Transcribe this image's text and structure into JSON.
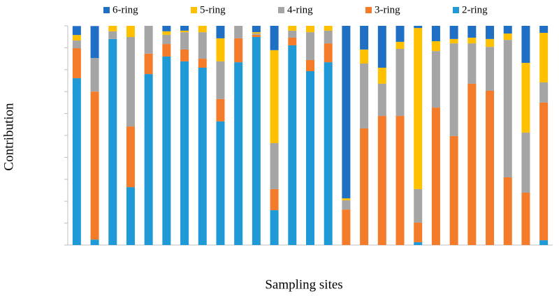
{
  "chart_data": {
    "type": "stacked-bar",
    "x_label": "Sampling sites",
    "y_label": "Contribution",
    "categories": [
      null,
      null,
      null,
      null,
      null,
      null,
      null,
      null,
      null,
      null,
      null,
      null,
      null,
      null,
      null,
      null,
      null,
      null,
      null,
      null,
      null,
      null,
      null,
      null,
      null,
      null,
      null
    ],
    "ylim": [
      0,
      100
    ],
    "yticks": [
      0,
      10,
      20,
      30,
      40,
      50,
      60,
      70,
      80,
      90,
      100
    ],
    "grid": false,
    "legend": "top",
    "series": [
      {
        "name": "6-ring",
        "color": "#1f6fc5",
        "values": [
          4.1,
          14.6,
          0,
          0,
          0,
          2.5,
          2.2,
          0,
          5.7,
          0,
          2.9,
          11.1,
          0,
          0,
          0,
          78.7,
          10.8,
          19.1,
          7.3,
          1.0,
          7.0,
          6.0,
          5.4,
          6.0,
          3.5,
          16.9,
          3.2
        ]
      },
      {
        "name": "5-ring",
        "color": "#ffc000",
        "values": [
          2.5,
          0,
          2.5,
          5.1,
          0,
          1.6,
          0.7,
          2.9,
          10.5,
          0,
          0.6,
          42.4,
          2.2,
          2.9,
          2.2,
          0.9,
          6.4,
          7.3,
          3.2,
          73.5,
          4.5,
          2.0,
          2.6,
          3.6,
          2.9,
          31.8,
          22.6
        ]
      },
      {
        "name": "4-ring",
        "color": "#a5a5a5",
        "values": [
          3.5,
          15.3,
          3.5,
          40.8,
          12.7,
          4.2,
          7.9,
          12.1,
          17.2,
          5.7,
          0.6,
          21.0,
          3.2,
          12.7,
          5.8,
          4.2,
          29.6,
          14.7,
          30.6,
          15.3,
          25.8,
          42.3,
          18.4,
          20.0,
          62.7,
          27.4,
          9.2
        ]
      },
      {
        "name": "3-ring",
        "color": "#f47b2a",
        "values": [
          13.7,
          67.5,
          0,
          27.7,
          9.3,
          5.7,
          5.4,
          4.1,
          10.2,
          10.9,
          1.0,
          9.6,
          3.5,
          5.1,
          8.6,
          16.2,
          53.2,
          58.9,
          58.9,
          8.9,
          62.7,
          49.7,
          73.6,
          70.4,
          30.9,
          23.9,
          62.8
        ]
      },
      {
        "name": "2-ring",
        "color": "#1f9ad6",
        "values": [
          76.1,
          2.5,
          94.0,
          26.4,
          78.0,
          86.0,
          83.8,
          80.9,
          56.4,
          83.4,
          94.9,
          15.9,
          91.1,
          79.3,
          83.4,
          0,
          0,
          0,
          0,
          1.3,
          0,
          0,
          0,
          0,
          0,
          0,
          2.2
        ]
      }
    ]
  }
}
